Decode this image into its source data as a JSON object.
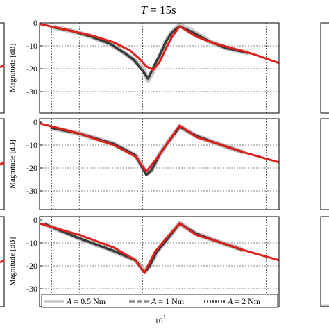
{
  "title": {
    "var": "T",
    "rest": " = 15s"
  },
  "ylabel": "Magnitude [dB]",
  "yticks": [
    "0",
    "-10",
    "-20",
    "-30"
  ],
  "xtick_label": {
    "base": "10",
    "exp": "1"
  },
  "legend": [
    {
      "var": "A",
      "rest": " = 0.5 Nm"
    },
    {
      "var": "A",
      "rest": " = 1 Nm"
    },
    {
      "var": "A",
      "rest": " = 2 Nm"
    }
  ],
  "colors": {
    "model": "#e0201b",
    "a05": "#c8c8c8",
    "a1": "#8a8a8a",
    "a2": "#3a3a3a"
  },
  "chart_data": [
    {
      "type": "line",
      "title": "T = 15s",
      "ylabel": "Magnitude [dB]",
      "xscale": "log",
      "ylim": [
        -33,
        1
      ],
      "grid": true,
      "series": [
        {
          "key": "model",
          "x": [
            5.6,
            6.5,
            7.5,
            8.5,
            9.3,
            9.8,
            10.2,
            10.6,
            11.0,
            11.4,
            11.8,
            12.3,
            13.5,
            15,
            16.5,
            18.5,
            21.5
          ],
          "values": [
            -0.5,
            -3,
            -5.5,
            -8.5,
            -12,
            -15.5,
            -19,
            -20.5,
            -17,
            -11,
            -6,
            -1.5,
            -6,
            -9,
            -11,
            -13.5,
            -17.5
          ]
        },
        {
          "key": "a05",
          "x": [
            6.1,
            6.7,
            7.5,
            8.3,
            9.0,
            9.5,
            10.0,
            10.3,
            10.6,
            11.0,
            11.4,
            11.8,
            12.3,
            13.2,
            14.5,
            16,
            18
          ],
          "values": [
            -2,
            -3.5,
            -6,
            -9,
            -13,
            -16,
            -20,
            -25,
            -21,
            -15,
            -8,
            -4,
            -1,
            -3.5,
            -8,
            -11,
            -13
          ]
        },
        {
          "key": "a1",
          "x": [
            6.1,
            6.7,
            7.5,
            8.3,
            9.0,
            9.5,
            10.0,
            10.3,
            10.6,
            11.0,
            11.4,
            11.8,
            12.3,
            13.2,
            14.5,
            16,
            18
          ],
          "values": [
            -2,
            -3.5,
            -6,
            -9,
            -13,
            -16,
            -21,
            -24,
            -20,
            -14.5,
            -8,
            -4,
            -1.5,
            -4,
            -8,
            -11,
            -13
          ]
        },
        {
          "key": "a2",
          "x": [
            6.1,
            6.7,
            7.5,
            8.3,
            9.0,
            9.5,
            10.0,
            10.3,
            10.6,
            11.0,
            11.4,
            11.8,
            12.3,
            13.2,
            14.5,
            16,
            18
          ],
          "values": [
            -2,
            -3.5,
            -6,
            -9,
            -13,
            -16,
            -21,
            -24.5,
            -19.5,
            -14,
            -8,
            -4,
            -1.5,
            -4,
            -8,
            -11,
            -13
          ]
        }
      ]
    },
    {
      "type": "line",
      "ylabel": "Magnitude [dB]",
      "xscale": "log",
      "ylim": [
        -33,
        1
      ],
      "grid": true,
      "series": [
        {
          "key": "model",
          "x": [
            5.6,
            7.0,
            8.5,
            9.6,
            10.2,
            10.8,
            11.5,
            12.3,
            13.5,
            15,
            17.5,
            21.5
          ],
          "values": [
            -0.5,
            -5,
            -10,
            -15,
            -21.5,
            -16,
            -9,
            -1.5,
            -6.5,
            -9,
            -13,
            -17.5
          ]
        },
        {
          "key": "a05",
          "x": [
            6.0,
            7.0,
            8.5,
            9.6,
            10.2,
            10.5,
            11.0,
            11.5,
            12.3,
            13.5,
            15,
            17.5
          ],
          "values": [
            -2.5,
            -5,
            -9.5,
            -14.5,
            -22,
            -21,
            -14,
            -9,
            -2,
            -6,
            -9,
            -13
          ]
        },
        {
          "key": "a1",
          "x": [
            6.0,
            7.0,
            8.5,
            9.6,
            10.2,
            10.5,
            11.0,
            11.5,
            12.3,
            13.5,
            15,
            17.5
          ],
          "values": [
            -2.5,
            -5,
            -9.5,
            -14.5,
            -23,
            -21,
            -14,
            -9,
            -2,
            -6,
            -9,
            -13
          ]
        },
        {
          "key": "a2",
          "x": [
            6.0,
            7.0,
            8.5,
            9.6,
            10.2,
            10.5,
            11.0,
            11.5,
            12.3,
            13.5,
            15,
            17.5
          ],
          "values": [
            -2.5,
            -5,
            -9.5,
            -14.5,
            -23,
            -21,
            -14,
            -9,
            -2,
            -6,
            -9,
            -13
          ]
        }
      ]
    },
    {
      "type": "line",
      "ylabel": "Magnitude [dB]",
      "xscale": "log",
      "ylim": [
        -33,
        1
      ],
      "grid": true,
      "series": [
        {
          "key": "model",
          "x": [
            5.6,
            7.0,
            8.5,
            9.6,
            10.1,
            10.7,
            11.4,
            12.3,
            13.5,
            15,
            17.5,
            21.5
          ],
          "values": [
            -1.5,
            -6.5,
            -12,
            -17.5,
            -23,
            -14,
            -8,
            -1.5,
            -6.5,
            -9,
            -13,
            -17.5
          ]
        },
        {
          "key": "a05",
          "x": [
            5.8,
            7.0,
            8.5,
            9.6,
            10.1,
            10.4,
            10.8,
            11.4,
            12.3,
            13.5,
            15,
            17.5
          ],
          "values": [
            -2,
            -8,
            -13.5,
            -17.5,
            -22.5,
            -20,
            -14,
            -9,
            -1.5,
            -6,
            -9,
            -13
          ]
        },
        {
          "key": "a1",
          "x": [
            5.8,
            7.0,
            8.5,
            9.6,
            10.1,
            10.4,
            10.8,
            11.4,
            12.3,
            13.5,
            15,
            17.5
          ],
          "values": [
            -2,
            -8,
            -13.5,
            -17.5,
            -23,
            -20,
            -14,
            -9,
            -1.5,
            -6,
            -9,
            -13
          ]
        },
        {
          "key": "a2",
          "x": [
            5.8,
            7.0,
            8.5,
            9.6,
            10.1,
            10.4,
            10.8,
            11.4,
            12.3,
            13.5,
            15,
            17.5
          ],
          "values": [
            -2,
            -8,
            -13.5,
            -17.5,
            -23,
            -20,
            -14,
            -9,
            -1.5,
            -6,
            -9,
            -13
          ]
        }
      ]
    }
  ]
}
